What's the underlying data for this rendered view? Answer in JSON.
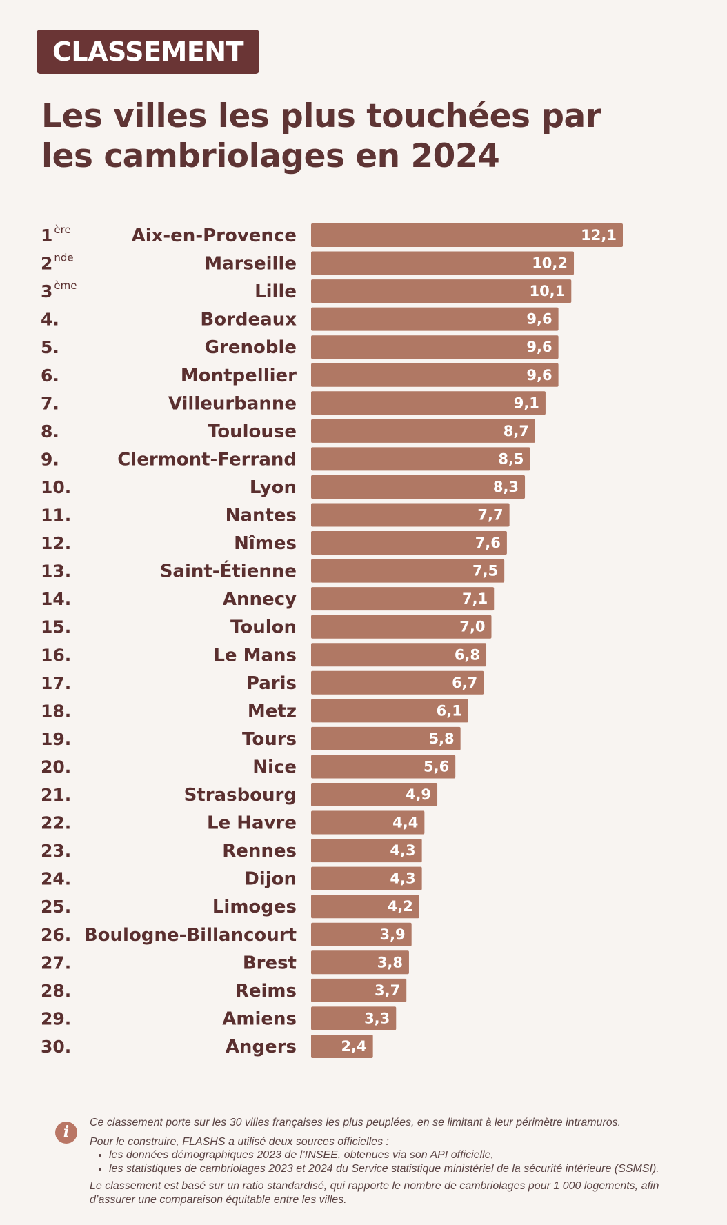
{
  "header": {
    "badge": "CLASSEMENT",
    "title_line1": "Les villes les plus touchées par",
    "title_line2": "les cambriolages en 2024"
  },
  "colors": {
    "bar": "#b07864",
    "accent_dark": "#6a3535",
    "text": "#5a2f2f",
    "background": "#f8f4f1"
  },
  "chart_data": {
    "type": "bar",
    "orientation": "horizontal",
    "ranks": [
      {
        "num": "1",
        "sup": "ère"
      },
      {
        "num": "2",
        "sup": "nde"
      },
      {
        "num": "3",
        "sup": "ème"
      },
      {
        "num": "4.",
        "sup": ""
      },
      {
        "num": "5.",
        "sup": ""
      },
      {
        "num": "6.",
        "sup": ""
      },
      {
        "num": "7.",
        "sup": ""
      },
      {
        "num": "8.",
        "sup": ""
      },
      {
        "num": "9.",
        "sup": ""
      },
      {
        "num": "10.",
        "sup": ""
      },
      {
        "num": "11.",
        "sup": ""
      },
      {
        "num": "12.",
        "sup": ""
      },
      {
        "num": "13.",
        "sup": ""
      },
      {
        "num": "14.",
        "sup": ""
      },
      {
        "num": "15.",
        "sup": ""
      },
      {
        "num": "16.",
        "sup": ""
      },
      {
        "num": "17.",
        "sup": ""
      },
      {
        "num": "18.",
        "sup": ""
      },
      {
        "num": "19.",
        "sup": ""
      },
      {
        "num": "20.",
        "sup": ""
      },
      {
        "num": "21.",
        "sup": ""
      },
      {
        "num": "22.",
        "sup": ""
      },
      {
        "num": "23.",
        "sup": ""
      },
      {
        "num": "24.",
        "sup": ""
      },
      {
        "num": "25.",
        "sup": ""
      },
      {
        "num": "26.",
        "sup": ""
      },
      {
        "num": "27.",
        "sup": ""
      },
      {
        "num": "28.",
        "sup": ""
      },
      {
        "num": "29.",
        "sup": ""
      },
      {
        "num": "30.",
        "sup": ""
      }
    ],
    "categories": [
      "Aix-en-Provence",
      "Marseille",
      "Lille",
      "Bordeaux",
      "Grenoble",
      "Montpellier",
      "Villeurbanne",
      "Toulouse",
      "Clermont-Ferrand",
      "Lyon",
      "Nantes",
      "Nîmes",
      "Saint-Étienne",
      "Annecy",
      "Toulon",
      "Le Mans",
      "Paris",
      "Metz",
      "Tours",
      "Nice",
      "Strasbourg",
      "Le Havre",
      "Rennes",
      "Dijon",
      "Limoges",
      "Boulogne-Billancourt",
      "Brest",
      "Reims",
      "Amiens",
      "Angers"
    ],
    "values": [
      12.1,
      10.2,
      10.1,
      9.6,
      9.6,
      9.6,
      9.1,
      8.7,
      8.5,
      8.3,
      7.7,
      7.6,
      7.5,
      7.1,
      7.0,
      6.8,
      6.7,
      6.1,
      5.8,
      5.6,
      4.9,
      4.4,
      4.3,
      4.3,
      4.2,
      3.9,
      3.8,
      3.7,
      3.3,
      2.4
    ],
    "value_labels": [
      "12,1",
      "10,2",
      "10,1",
      "9,6",
      "9,6",
      "9,6",
      "9,1",
      "8,7",
      "8,5",
      "8,3",
      "7,7",
      "7,6",
      "7,5",
      "7,1",
      "7,0",
      "6,8",
      "6,7",
      "6,1",
      "5,8",
      "5,6",
      "4,9",
      "4,4",
      "4,3",
      "4,3",
      "4,2",
      "3,9",
      "3,8",
      "3,7",
      "3,3",
      "2,4"
    ]
  },
  "footnote": {
    "icon": "info-icon",
    "line1": "Ce classement porte sur les 30 villes françaises les plus peuplées, en se limitant à leur périmètre intramuros.",
    "line2": "Pour le construire, FLASHS a utilisé deux sources officielles :",
    "bullets": [
      "les données démographiques 2023 de l’INSEE, obtenues via son API officielle,",
      "les statistiques de cambriolages 2023 et 2024 du Service statistique ministériel de la sécurité intérieure (SSMSI)."
    ],
    "line3": "Le classement est basé sur un ratio standardisé, qui rapporte le nombre de cambriolages pour 1 000 logements, afin d’assurer une comparaison équitable entre les villes."
  }
}
